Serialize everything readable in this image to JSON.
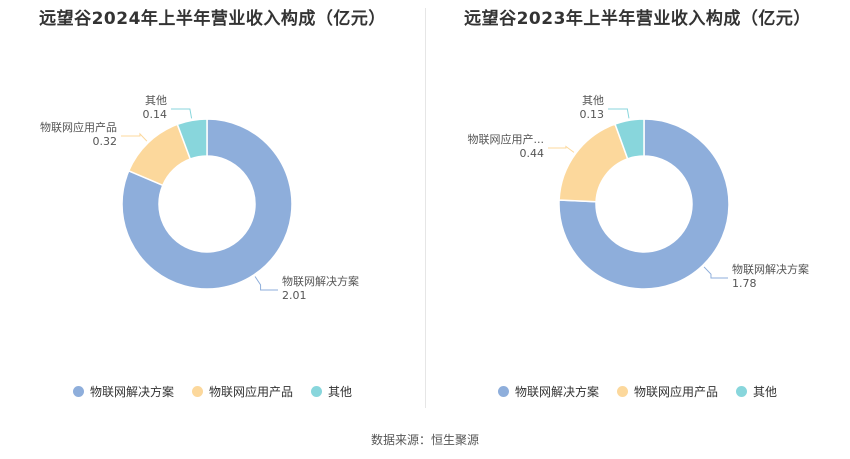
{
  "chart_data": [
    {
      "type": "pie",
      "title": "远望谷2024年上半年营业收入构成（亿元）",
      "categories": [
        "物联网解决方案",
        "物联网应用产品",
        "其他"
      ],
      "label_names": [
        "物联网解决方案",
        "物联网应用产品",
        "其他"
      ],
      "values": [
        2.01,
        0.32,
        0.14
      ],
      "colors": [
        "#8eaedb",
        "#fcd89c",
        "#88d6dc"
      ]
    },
    {
      "type": "pie",
      "title": "远望谷2023年上半年营业收入构成（亿元）",
      "categories": [
        "物联网解决方案",
        "物联网应用产品",
        "其他"
      ],
      "label_names": [
        "物联网解决方案",
        "物联网应用产...",
        "其他"
      ],
      "values": [
        1.78,
        0.44,
        0.13
      ],
      "colors": [
        "#8eaedb",
        "#fcd89c",
        "#88d6dc"
      ]
    }
  ],
  "legend": [
    "物联网解决方案",
    "物联网应用产品",
    "其他"
  ],
  "source": "数据来源：恒生聚源"
}
